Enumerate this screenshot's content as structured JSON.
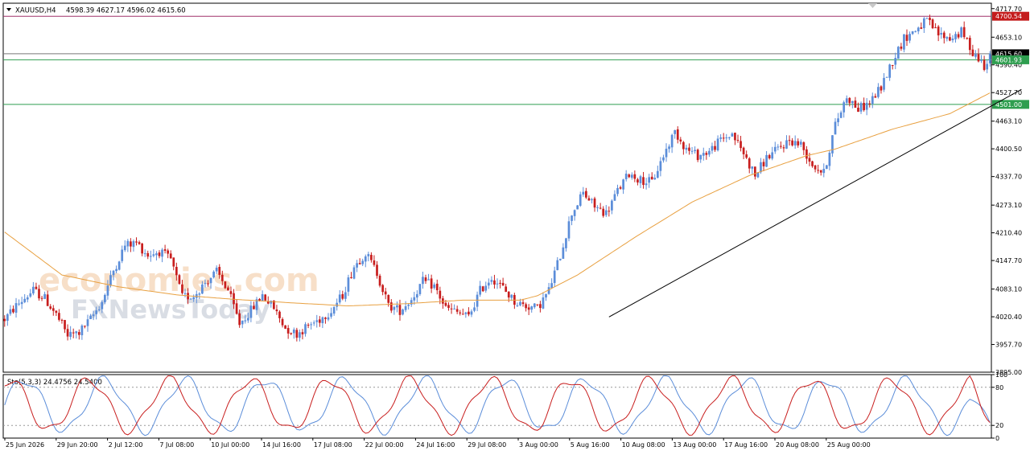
{
  "header": {
    "symbol": "XAUUSD,H4",
    "ohlc": "4598.39 4627.17 4596.02 4615.60"
  },
  "watermark": {
    "line1": "economies.com",
    "line2": "FXNewsToday"
  },
  "colors": {
    "bull": "#5b8dd9",
    "bear": "#c81e1e",
    "ma": "#e8a040",
    "trendline": "#000000",
    "resistance": "#a0306a",
    "support": "#2e9e4f",
    "stoch_main": "#5b8dd9",
    "stoch_signal": "#c81e1e"
  },
  "chart_data": [
    {
      "type": "line",
      "subtype": "candlestick",
      "symbol": "XAUUSD",
      "timeframe": "H4",
      "ylim": [
        3895.0,
        4730.0
      ],
      "yticks": [
        "4717.70",
        "4653.10",
        "4590.40",
        "4527.70",
        "4463.10",
        "4400.50",
        "4337.70",
        "4273.10",
        "4210.40",
        "4147.70",
        "4083.10",
        "4020.40",
        "3957.70",
        "3895.00"
      ],
      "x_labels": [
        "25 Jun 2026",
        "29 Jun 20:00",
        "2 Jul 12:00",
        "7 Jul 08:00",
        "10 Jul 00:00",
        "14 Jul 16:00",
        "17 Jul 08:00",
        "22 Jul 00:00",
        "24 Jul 16:00",
        "29 Jul 08:00",
        "3 Aug 00:00",
        "5 Aug 16:00",
        "10 Aug 08:00",
        "13 Aug 00:00",
        "17 Aug 16:00",
        "20 Aug 08:00",
        "25 Aug 00:00"
      ],
      "levels": [
        {
          "value": 4700.54,
          "label": "4700.54",
          "role": "resistance"
        },
        {
          "value": 4615.6,
          "label": "4615.60",
          "role": "bid"
        },
        {
          "value": 4601.93,
          "label": "4601.93",
          "role": "support"
        },
        {
          "value": 4501.0,
          "label": "4501.00",
          "role": "support"
        }
      ],
      "price_path": [
        [
          0,
          4015
        ],
        [
          4,
          4045
        ],
        [
          10,
          4080
        ],
        [
          14,
          4062
        ],
        [
          18,
          4025
        ],
        [
          22,
          3978
        ],
        [
          26,
          3985
        ],
        [
          30,
          4015
        ],
        [
          34,
          4055
        ],
        [
          38,
          4125
        ],
        [
          42,
          4182
        ],
        [
          46,
          4188
        ],
        [
          50,
          4160
        ],
        [
          54,
          4168
        ],
        [
          58,
          4150
        ],
        [
          62,
          4065
        ],
        [
          66,
          4068
        ],
        [
          70,
          4098
        ],
        [
          74,
          4122
        ],
        [
          78,
          4080
        ],
        [
          82,
          4005
        ],
        [
          86,
          4035
        ],
        [
          90,
          4070
        ],
        [
          94,
          4040
        ],
        [
          98,
          3995
        ],
        [
          102,
          3982
        ],
        [
          106,
          4000
        ],
        [
          110,
          4015
        ],
        [
          114,
          4035
        ],
        [
          118,
          4070
        ],
        [
          122,
          4135
        ],
        [
          126,
          4165
        ],
        [
          130,
          4120
        ],
        [
          134,
          4045
        ],
        [
          138,
          4035
        ],
        [
          142,
          4060
        ],
        [
          146,
          4100
        ],
        [
          150,
          4090
        ],
        [
          154,
          4040
        ],
        [
          158,
          4030
        ],
        [
          162,
          4020
        ],
        [
          166,
          4080
        ],
        [
          170,
          4110
        ],
        [
          174,
          4085
        ],
        [
          178,
          4055
        ],
        [
          182,
          4045
        ],
        [
          186,
          4040
        ],
        [
          190,
          4080
        ],
        [
          194,
          4160
        ],
        [
          198,
          4255
        ],
        [
          202,
          4300
        ],
        [
          206,
          4270
        ],
        [
          210,
          4255
        ],
        [
          214,
          4305
        ],
        [
          218,
          4345
        ],
        [
          222,
          4330
        ],
        [
          226,
          4325
        ],
        [
          230,
          4385
        ],
        [
          234,
          4440
        ],
        [
          238,
          4400
        ],
        [
          242,
          4385
        ],
        [
          246,
          4395
        ],
        [
          250,
          4420
        ],
        [
          254,
          4435
        ],
        [
          258,
          4390
        ],
        [
          262,
          4340
        ],
        [
          266,
          4380
        ],
        [
          270,
          4400
        ],
        [
          274,
          4420
        ],
        [
          278,
          4410
        ],
        [
          282,
          4365
        ],
        [
          286,
          4345
        ],
        [
          290,
          4455
        ],
        [
          294,
          4520
        ],
        [
          298,
          4490
        ],
        [
          302,
          4505
        ],
        [
          306,
          4540
        ],
        [
          310,
          4600
        ],
        [
          314,
          4650
        ],
        [
          318,
          4670
        ],
        [
          322,
          4690
        ],
        [
          326,
          4660
        ],
        [
          330,
          4650
        ],
        [
          334,
          4665
        ],
        [
          338,
          4620
        ],
        [
          342,
          4590
        ],
        [
          344,
          4615.6
        ]
      ],
      "moving_average": [
        [
          0,
          4212
        ],
        [
          20,
          4115
        ],
        [
          40,
          4088
        ],
        [
          60,
          4070
        ],
        [
          80,
          4060
        ],
        [
          100,
          4052
        ],
        [
          120,
          4045
        ],
        [
          140,
          4050
        ],
        [
          160,
          4058
        ],
        [
          180,
          4058
        ],
        [
          186,
          4068
        ],
        [
          200,
          4115
        ],
        [
          220,
          4200
        ],
        [
          240,
          4280
        ],
        [
          260,
          4340
        ],
        [
          280,
          4385
        ],
        [
          290,
          4400
        ],
        [
          310,
          4445
        ],
        [
          330,
          4480
        ],
        [
          344,
          4527
        ]
      ],
      "trendline": {
        "from": [
          211,
          4020
        ],
        "to": [
          355,
          4535
        ]
      }
    },
    {
      "type": "line",
      "title": "Sto(5,3,3) 24.4756 24.5400",
      "ylim": [
        0,
        100
      ],
      "yticks": [
        "100",
        "80",
        "20",
        "0"
      ],
      "levels": [
        80,
        20
      ],
      "series": [
        {
          "role": "main",
          "period": 28,
          "phase": 0.0
        },
        {
          "role": "signal",
          "period": 28,
          "phase": 1.2
        }
      ],
      "last_values": [
        24.4756,
        24.54
      ]
    }
  ]
}
